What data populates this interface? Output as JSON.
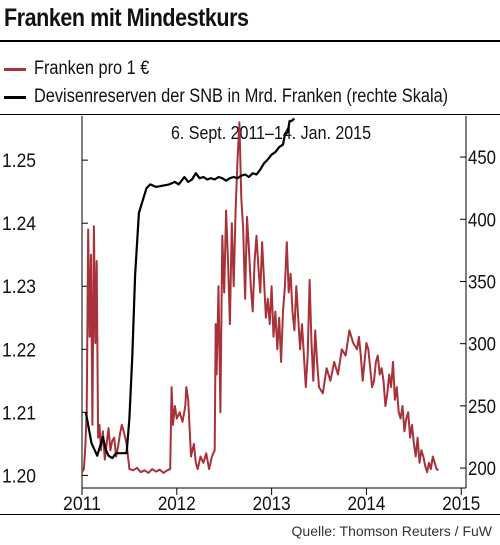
{
  "header": {
    "title": "Franken mit Mindestkurs",
    "source": "Quelle: Thomson Reuters / FuW"
  },
  "chart_data": {
    "type": "line",
    "annotation": "6. Sept. 2011–14. Jan. 2015",
    "x_ticks": [
      "2011",
      "2012",
      "2013",
      "2014",
      "2015"
    ],
    "x_range": [
      2011.0,
      2015.05
    ],
    "y_left": {
      "ticks": [
        "1.20",
        "1.21",
        "1.22",
        "1.23",
        "1.24",
        "1.25"
      ],
      "ylim": [
        1.198,
        1.257
      ]
    },
    "y_right": {
      "ticks": [
        "200",
        "250",
        "300",
        "350",
        "400",
        "450"
      ],
      "ylim": [
        184,
        483
      ]
    },
    "grid": false,
    "legend_position": "top-left",
    "series": [
      {
        "name": "Franken pro 1 €",
        "axis": "left",
        "color": "#a8323a",
        "points": [
          [
            2011.0,
            1.2005
          ],
          [
            2011.02,
            1.201
          ],
          [
            2011.035,
            1.2045
          ],
          [
            2011.05,
            1.21
          ],
          [
            2011.065,
            1.239
          ],
          [
            2011.08,
            1.222
          ],
          [
            2011.095,
            1.235
          ],
          [
            2011.11,
            1.208
          ],
          [
            2011.125,
            1.2395
          ],
          [
            2011.14,
            1.221
          ],
          [
            2011.155,
            1.234
          ],
          [
            2011.17,
            1.206
          ],
          [
            2011.185,
            1.208
          ],
          [
            2011.2,
            1.204
          ],
          [
            2011.22,
            1.207
          ],
          [
            2011.24,
            1.2025
          ],
          [
            2011.26,
            1.205
          ],
          [
            2011.28,
            1.2075
          ],
          [
            2011.3,
            1.204
          ],
          [
            2011.32,
            1.2055
          ],
          [
            2011.34,
            1.206
          ],
          [
            2011.36,
            1.203
          ],
          [
            2011.38,
            1.2045
          ],
          [
            2011.4,
            1.2065
          ],
          [
            2011.42,
            1.208
          ],
          [
            2011.44,
            1.207
          ],
          [
            2011.47,
            1.205
          ],
          [
            2011.5,
            1.201
          ],
          [
            2011.54,
            1.2008
          ],
          [
            2011.58,
            1.2012
          ],
          [
            2011.62,
            1.2005
          ],
          [
            2011.66,
            1.2008
          ],
          [
            2011.7,
            1.2004
          ],
          [
            2011.74,
            1.201
          ],
          [
            2011.78,
            1.2006
          ],
          [
            2011.82,
            1.2009
          ],
          [
            2011.86,
            1.2004
          ],
          [
            2011.9,
            1.2008
          ],
          [
            2011.93,
            1.201
          ],
          [
            2011.945,
            1.214
          ],
          [
            2011.96,
            1.208
          ],
          [
            2011.98,
            1.211
          ],
          [
            2012.0,
            1.209
          ],
          [
            2012.03,
            1.21
          ],
          [
            2012.06,
            1.2085
          ],
          [
            2012.09,
            1.211
          ],
          [
            2012.1,
            1.214
          ],
          [
            2012.12,
            1.212
          ],
          [
            2012.15,
            1.203
          ],
          [
            2012.18,
            1.205
          ],
          [
            2012.2,
            1.202
          ],
          [
            2012.22,
            1.201
          ],
          [
            2012.25,
            1.203
          ],
          [
            2012.28,
            1.202
          ],
          [
            2012.31,
            1.2035
          ],
          [
            2012.34,
            1.201
          ],
          [
            2012.37,
            1.203
          ],
          [
            2012.4,
            1.204
          ],
          [
            2012.41,
            1.224
          ],
          [
            2012.42,
            1.216
          ],
          [
            2012.44,
            1.23
          ],
          [
            2012.46,
            1.21
          ],
          [
            2012.48,
            1.238
          ],
          [
            2012.5,
            1.229
          ],
          [
            2012.52,
            1.242
          ],
          [
            2012.54,
            1.234
          ],
          [
            2012.56,
            1.224
          ],
          [
            2012.58,
            1.24
          ],
          [
            2012.6,
            1.23
          ],
          [
            2012.62,
            1.242
          ],
          [
            2012.64,
            1.25
          ],
          [
            2012.66,
            1.256
          ],
          [
            2012.68,
            1.244
          ],
          [
            2012.7,
            1.239
          ],
          [
            2012.72,
            1.228
          ],
          [
            2012.74,
            1.241
          ],
          [
            2012.76,
            1.236
          ],
          [
            2012.78,
            1.23
          ],
          [
            2012.8,
            1.226
          ],
          [
            2012.82,
            1.234
          ],
          [
            2012.84,
            1.238
          ],
          [
            2012.86,
            1.233
          ],
          [
            2012.88,
            1.229
          ],
          [
            2012.9,
            1.237
          ],
          [
            2012.92,
            1.231
          ],
          [
            2012.94,
            1.225
          ],
          [
            2012.96,
            1.228
          ],
          [
            2012.98,
            1.224
          ],
          [
            2013.0,
            1.23
          ],
          [
            2013.02,
            1.222
          ],
          [
            2013.04,
            1.226
          ],
          [
            2013.06,
            1.22
          ],
          [
            2013.08,
            1.225
          ],
          [
            2013.1,
            1.218
          ],
          [
            2013.12,
            1.226
          ],
          [
            2013.14,
            1.23
          ],
          [
            2013.16,
            1.237
          ],
          [
            2013.18,
            1.229
          ],
          [
            2013.2,
            1.232
          ],
          [
            2013.22,
            1.226
          ],
          [
            2013.24,
            1.223
          ],
          [
            2013.26,
            1.23
          ],
          [
            2013.28,
            1.225
          ],
          [
            2013.3,
            1.22
          ],
          [
            2013.32,
            1.224
          ],
          [
            2013.34,
            1.219
          ],
          [
            2013.36,
            1.214
          ],
          [
            2013.38,
            1.219
          ],
          [
            2013.4,
            1.231
          ],
          [
            2013.42,
            1.221
          ],
          [
            2013.44,
            1.215
          ],
          [
            2013.46,
            1.223
          ],
          [
            2013.48,
            1.218
          ],
          [
            2013.5,
            1.214
          ],
          [
            2013.54,
            1.213
          ],
          [
            2013.58,
            1.217
          ],
          [
            2013.62,
            1.215
          ],
          [
            2013.66,
            1.218
          ],
          [
            2013.7,
            1.216
          ],
          [
            2013.74,
            1.22
          ],
          [
            2013.78,
            1.219
          ],
          [
            2013.82,
            1.223
          ],
          [
            2013.86,
            1.221
          ],
          [
            2013.9,
            1.22
          ],
          [
            2013.92,
            1.222
          ],
          [
            2013.94,
            1.219
          ],
          [
            2013.96,
            1.215
          ],
          [
            2013.98,
            1.218
          ],
          [
            2014.0,
            1.221
          ],
          [
            2014.02,
            1.22
          ],
          [
            2014.04,
            1.217
          ],
          [
            2014.06,
            1.214
          ],
          [
            2014.08,
            1.215
          ],
          [
            2014.1,
            1.218
          ],
          [
            2014.12,
            1.219
          ],
          [
            2014.14,
            1.216
          ],
          [
            2014.16,
            1.217
          ],
          [
            2014.18,
            1.215
          ],
          [
            2014.2,
            1.211
          ],
          [
            2014.22,
            1.213
          ],
          [
            2014.24,
            1.216
          ],
          [
            2014.26,
            1.214
          ],
          [
            2014.28,
            1.218
          ],
          [
            2014.3,
            1.212
          ],
          [
            2014.32,
            1.214
          ],
          [
            2014.34,
            1.21
          ],
          [
            2014.36,
            1.209
          ],
          [
            2014.38,
            1.211
          ],
          [
            2014.4,
            1.207
          ],
          [
            2014.42,
            1.209
          ],
          [
            2014.44,
            1.21
          ],
          [
            2014.46,
            1.206
          ],
          [
            2014.48,
            1.208
          ],
          [
            2014.5,
            1.205
          ],
          [
            2014.52,
            1.203
          ],
          [
            2014.54,
            1.206
          ],
          [
            2014.56,
            1.202
          ],
          [
            2014.58,
            1.204
          ],
          [
            2014.6,
            1.203
          ],
          [
            2014.62,
            1.2015
          ],
          [
            2014.64,
            1.2005
          ],
          [
            2014.66,
            1.202
          ],
          [
            2014.68,
            1.201
          ],
          [
            2014.7,
            1.203
          ],
          [
            2014.72,
            1.202
          ],
          [
            2014.74,
            1.201
          ],
          [
            2014.76,
            1.2008
          ]
        ]
      },
      {
        "name": "Devisenreserven der SNB in Mrd. Franken (rechte Skala)",
        "axis": "right",
        "color": "#000000",
        "points": [
          [
            2011.04,
            245
          ],
          [
            2011.1,
            220
          ],
          [
            2011.16,
            210
          ],
          [
            2011.22,
            225
          ],
          [
            2011.25,
            215
          ],
          [
            2011.28,
            210
          ],
          [
            2011.32,
            208
          ],
          [
            2011.36,
            212
          ],
          [
            2011.42,
            212
          ],
          [
            2011.47,
            212
          ],
          [
            2011.5,
            240
          ],
          [
            2011.53,
            290
          ],
          [
            2011.56,
            355
          ],
          [
            2011.6,
            405
          ],
          [
            2011.64,
            415
          ],
          [
            2011.68,
            425
          ],
          [
            2011.72,
            428
          ],
          [
            2011.78,
            426
          ],
          [
            2011.85,
            427
          ],
          [
            2011.92,
            428
          ],
          [
            2011.98,
            430
          ],
          [
            2012.02,
            428
          ],
          [
            2012.08,
            434
          ],
          [
            2012.12,
            430
          ],
          [
            2012.16,
            432
          ],
          [
            2012.2,
            437
          ],
          [
            2012.24,
            433
          ],
          [
            2012.28,
            434
          ],
          [
            2012.32,
            432
          ],
          [
            2012.36,
            433
          ],
          [
            2012.4,
            432
          ],
          [
            2012.44,
            434
          ],
          [
            2012.48,
            433
          ],
          [
            2012.52,
            431
          ],
          [
            2012.56,
            433
          ],
          [
            2012.6,
            434
          ],
          [
            2012.64,
            433
          ],
          [
            2012.68,
            435
          ],
          [
            2012.72,
            436
          ],
          [
            2012.76,
            434
          ],
          [
            2012.8,
            437
          ],
          [
            2012.84,
            436
          ],
          [
            2012.88,
            440
          ],
          [
            2012.92,
            445
          ],
          [
            2012.96,
            448
          ],
          [
            2013.0,
            452
          ],
          [
            2013.04,
            454
          ],
          [
            2013.08,
            458
          ],
          [
            2013.12,
            460
          ],
          [
            2013.14,
            468
          ],
          [
            2013.17,
            470
          ],
          [
            2013.19,
            479
          ],
          [
            2013.21,
            479
          ],
          [
            2013.24,
            481
          ]
        ]
      }
    ]
  }
}
